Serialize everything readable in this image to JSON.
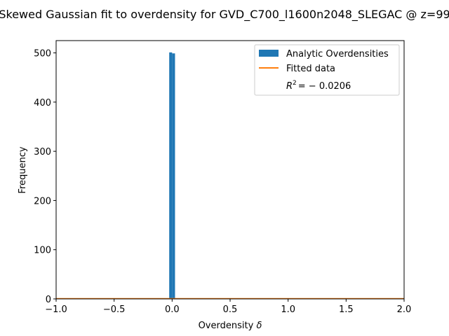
{
  "chart_data": {
    "type": "bar",
    "title": "Skewed Gaussian fit to overdensity for GVD_C700_l1600n2048_SLEGAC @ z=99",
    "xlabel": "Overdensity",
    "xlabel_symbol": "δ",
    "ylabel": "Frequency",
    "xlim": [
      -1.0,
      2.0
    ],
    "ylim": [
      0,
      525
    ],
    "xticks": [
      -1.0,
      -0.5,
      0.0,
      0.5,
      1.0,
      1.5,
      2.0
    ],
    "xtick_labels": [
      "−1.0",
      "−0.5",
      "0.0",
      "0.5",
      "1.0",
      "1.5",
      "2.0"
    ],
    "yticks": [
      0,
      100,
      200,
      300,
      400,
      500
    ],
    "ytick_labels": [
      "0",
      "100",
      "200",
      "300",
      "400",
      "500"
    ],
    "grid": false,
    "legend_placement": "top-right",
    "series": [
      {
        "name": "Analytic Overdensities",
        "kind": "histogram",
        "color": "#1f77b4",
        "bins": [
          {
            "x0": -0.025,
            "x1": 0.0,
            "count": 501
          },
          {
            "x0": 0.0,
            "x1": 0.025,
            "count": 499
          }
        ]
      },
      {
        "name": "Fitted data",
        "kind": "line",
        "color": "#ff7f0e",
        "x": [
          -1.0,
          2.0
        ],
        "y": [
          0,
          0
        ]
      }
    ],
    "annotation": {
      "r2_prefix": "R",
      "r2_exponent": "2",
      "r2_value": "= − 0.0206"
    }
  }
}
